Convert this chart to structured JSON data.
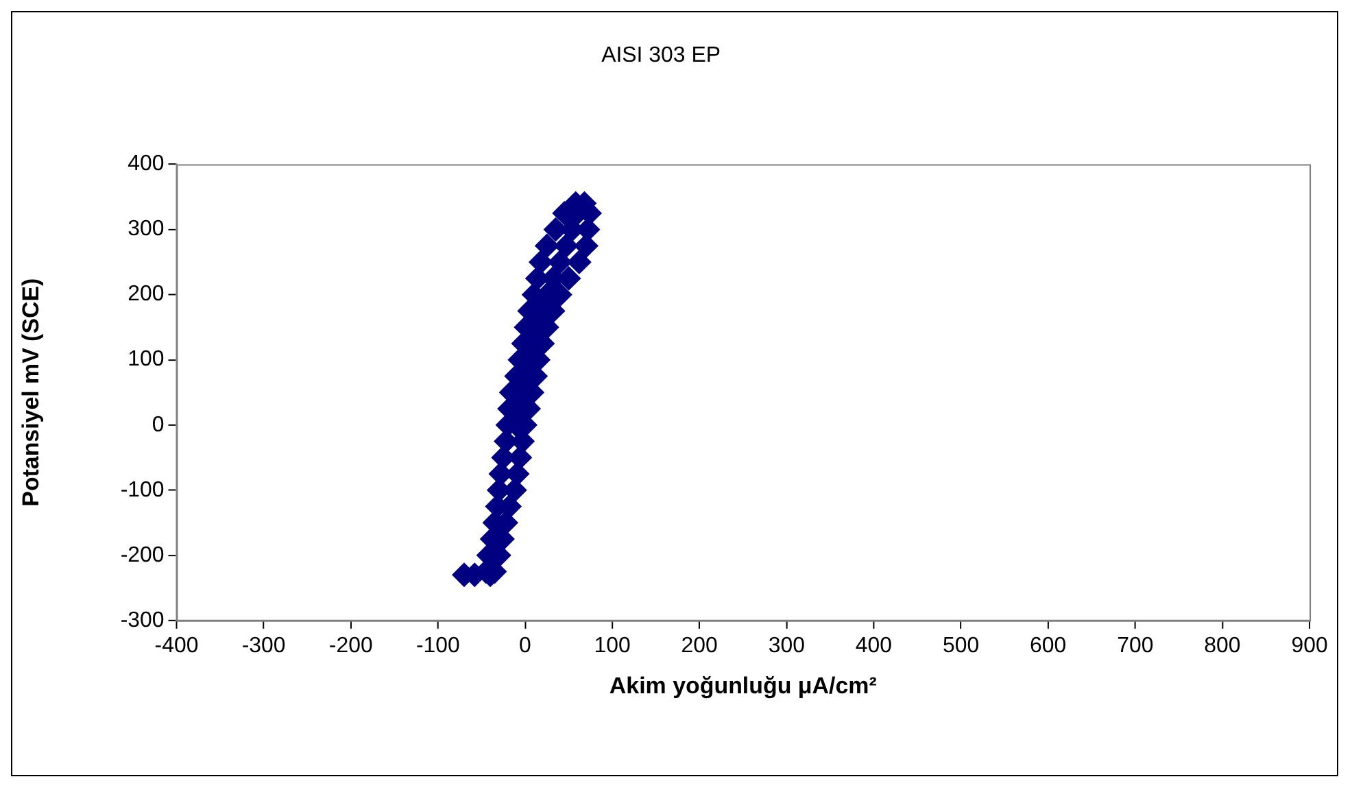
{
  "chart_data": {
    "type": "scatter",
    "title": "AISI 303 EP",
    "xlabel": "Akim yoğunluğu μA/cm²",
    "ylabel": "Potansiyel mV (SCE)",
    "xlim": [
      -400,
      900
    ],
    "xticks": [
      -400,
      -300,
      -200,
      -100,
      0,
      100,
      200,
      300,
      400,
      500,
      600,
      700,
      800,
      900
    ],
    "ylim": [
      -300,
      400
    ],
    "yticks": [
      -300,
      -200,
      -100,
      0,
      100,
      200,
      300,
      400
    ],
    "grid": false,
    "legend": false,
    "marker": "diamond",
    "series": [
      {
        "color": "#000080",
        "x": [
          -70,
          -58,
          -45,
          -42,
          -38,
          -35,
          -32,
          -30,
          -28,
          -25,
          -22,
          -20,
          -18,
          -16,
          -10,
          -6,
          -2,
          1,
          5,
          10,
          14,
          18,
          25,
          35,
          45,
          58,
          68,
          74,
          72,
          70,
          62,
          50,
          40,
          32,
          25,
          20,
          15,
          12,
          8,
          4,
          0,
          -3,
          -6,
          -9,
          -12,
          -18,
          -22,
          -26,
          -30,
          -35,
          -40,
          -10,
          -7,
          -4,
          1,
          5,
          9,
          13,
          18,
          25,
          32,
          40,
          47,
          54,
          60
        ],
        "values": [
          -230,
          -230,
          -225,
          -200,
          -175,
          -150,
          -125,
          -100,
          -75,
          -50,
          -25,
          0,
          25,
          50,
          75,
          100,
          125,
          150,
          175,
          200,
          225,
          250,
          275,
          300,
          325,
          340,
          340,
          325,
          300,
          275,
          250,
          225,
          200,
          175,
          150,
          125,
          100,
          75,
          50,
          25,
          0,
          -25,
          -50,
          -75,
          -100,
          -125,
          -150,
          -175,
          -200,
          -225,
          -230,
          0,
          25,
          50,
          75,
          100,
          125,
          150,
          175,
          200,
          225,
          250,
          275,
          300,
          325
        ]
      }
    ]
  }
}
